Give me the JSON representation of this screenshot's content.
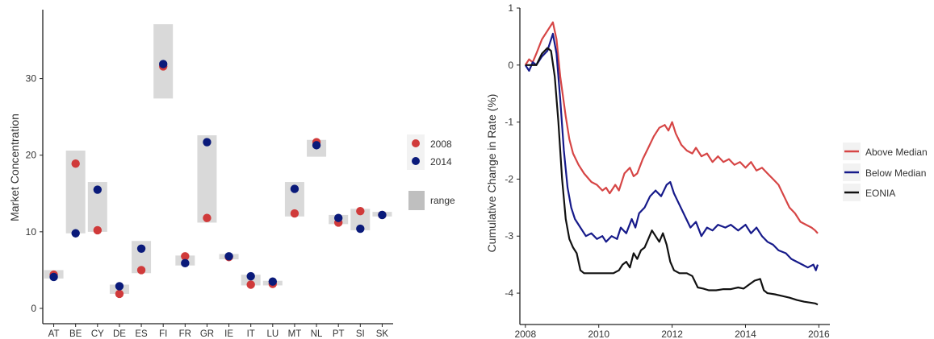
{
  "chart_data": [
    {
      "type": "scatter",
      "ylabel": "Market Concentration",
      "categories": [
        "AT",
        "BE",
        "CY",
        "DE",
        "ES",
        "FI",
        "FR",
        "GR",
        "IE",
        "IT",
        "LU",
        "MT",
        "NL",
        "PT",
        "SI",
        "SK"
      ],
      "ylim": [
        -2,
        39
      ],
      "yticks": [
        0,
        10,
        20,
        30
      ],
      "legend_position": "right",
      "series": [
        {
          "name": "2008",
          "color": "#d03a3a",
          "values": [
            4.4,
            18.9,
            10.2,
            1.9,
            5.0,
            31.6,
            6.8,
            11.8,
            6.7,
            3.1,
            3.2,
            12.4,
            21.7,
            11.2,
            12.7,
            12.2
          ]
        },
        {
          "name": "2014",
          "color": "#0a1a7a",
          "values": [
            4.1,
            9.8,
            15.5,
            2.9,
            7.8,
            31.9,
            5.9,
            21.7,
            6.8,
            4.2,
            3.5,
            15.6,
            21.3,
            11.8,
            10.4,
            12.2
          ]
        }
      ],
      "range": {
        "name": "range",
        "color": "#d9d9d9",
        "low": [
          3.9,
          9.8,
          10.0,
          1.9,
          4.6,
          27.4,
          5.6,
          11.2,
          6.4,
          3.0,
          3.0,
          12.0,
          19.8,
          11.0,
          10.2,
          12.0
        ],
        "high": [
          5.0,
          20.6,
          16.5,
          3.1,
          8.8,
          37.1,
          6.9,
          22.6,
          7.1,
          4.4,
          3.6,
          16.5,
          22.0,
          12.2,
          13.0,
          12.6
        ]
      }
    },
    {
      "type": "line",
      "ylabel": "Cumulative Change in Rate (%)",
      "xlim": [
        2007.85,
        2016.3
      ],
      "ylim": [
        -4.55,
        1.0
      ],
      "xticks": [
        2008,
        2010,
        2012,
        2014,
        2016
      ],
      "yticks": [
        1,
        0,
        -1,
        -2,
        -3,
        -4
      ],
      "legend_position": "right",
      "series": [
        {
          "name": "Above Median",
          "color": "#d64545",
          "points": [
            [
              2008.0,
              0.0
            ],
            [
              2008.1,
              0.1
            ],
            [
              2008.2,
              0.05
            ],
            [
              2008.3,
              0.2
            ],
            [
              2008.45,
              0.45
            ],
            [
              2008.6,
              0.6
            ],
            [
              2008.75,
              0.75
            ],
            [
              2008.85,
              0.45
            ],
            [
              2008.95,
              -0.2
            ],
            [
              2009.1,
              -0.9
            ],
            [
              2009.2,
              -1.3
            ],
            [
              2009.3,
              -1.55
            ],
            [
              2009.45,
              -1.75
            ],
            [
              2009.6,
              -1.9
            ],
            [
              2009.8,
              -2.05
            ],
            [
              2009.95,
              -2.1
            ],
            [
              2010.1,
              -2.2
            ],
            [
              2010.2,
              -2.15
            ],
            [
              2010.3,
              -2.25
            ],
            [
              2010.45,
              -2.1
            ],
            [
              2010.55,
              -2.2
            ],
            [
              2010.7,
              -1.9
            ],
            [
              2010.85,
              -1.8
            ],
            [
              2010.95,
              -1.95
            ],
            [
              2011.05,
              -1.9
            ],
            [
              2011.2,
              -1.65
            ],
            [
              2011.35,
              -1.45
            ],
            [
              2011.5,
              -1.25
            ],
            [
              2011.65,
              -1.1
            ],
            [
              2011.8,
              -1.05
            ],
            [
              2011.9,
              -1.15
            ],
            [
              2012.0,
              -1.0
            ],
            [
              2012.1,
              -1.2
            ],
            [
              2012.25,
              -1.4
            ],
            [
              2012.4,
              -1.5
            ],
            [
              2012.55,
              -1.55
            ],
            [
              2012.65,
              -1.45
            ],
            [
              2012.8,
              -1.6
            ],
            [
              2012.95,
              -1.55
            ],
            [
              2013.1,
              -1.7
            ],
            [
              2013.25,
              -1.6
            ],
            [
              2013.4,
              -1.7
            ],
            [
              2013.55,
              -1.65
            ],
            [
              2013.7,
              -1.75
            ],
            [
              2013.85,
              -1.7
            ],
            [
              2014.0,
              -1.8
            ],
            [
              2014.15,
              -1.7
            ],
            [
              2014.3,
              -1.85
            ],
            [
              2014.45,
              -1.8
            ],
            [
              2014.6,
              -1.9
            ],
            [
              2014.75,
              -2.0
            ],
            [
              2014.9,
              -2.1
            ],
            [
              2015.05,
              -2.3
            ],
            [
              2015.2,
              -2.5
            ],
            [
              2015.35,
              -2.6
            ],
            [
              2015.5,
              -2.75
            ],
            [
              2015.65,
              -2.8
            ],
            [
              2015.8,
              -2.85
            ],
            [
              2015.9,
              -2.9
            ],
            [
              2015.97,
              -2.95
            ]
          ]
        },
        {
          "name": "Below Median",
          "color": "#161a8a",
          "points": [
            [
              2008.0,
              0.0
            ],
            [
              2008.1,
              -0.1
            ],
            [
              2008.2,
              0.05
            ],
            [
              2008.3,
              0.0
            ],
            [
              2008.45,
              0.15
            ],
            [
              2008.6,
              0.25
            ],
            [
              2008.75,
              0.55
            ],
            [
              2008.85,
              0.2
            ],
            [
              2008.95,
              -0.6
            ],
            [
              2009.05,
              -1.5
            ],
            [
              2009.15,
              -2.15
            ],
            [
              2009.25,
              -2.5
            ],
            [
              2009.35,
              -2.7
            ],
            [
              2009.5,
              -2.85
            ],
            [
              2009.65,
              -3.0
            ],
            [
              2009.8,
              -2.95
            ],
            [
              2009.95,
              -3.05
            ],
            [
              2010.1,
              -3.0
            ],
            [
              2010.2,
              -3.1
            ],
            [
              2010.35,
              -3.0
            ],
            [
              2010.5,
              -3.05
            ],
            [
              2010.6,
              -2.85
            ],
            [
              2010.75,
              -2.95
            ],
            [
              2010.9,
              -2.7
            ],
            [
              2011.0,
              -2.85
            ],
            [
              2011.1,
              -2.6
            ],
            [
              2011.25,
              -2.5
            ],
            [
              2011.4,
              -2.3
            ],
            [
              2011.55,
              -2.2
            ],
            [
              2011.7,
              -2.3
            ],
            [
              2011.85,
              -2.1
            ],
            [
              2011.95,
              -2.05
            ],
            [
              2012.05,
              -2.25
            ],
            [
              2012.2,
              -2.45
            ],
            [
              2012.35,
              -2.65
            ],
            [
              2012.5,
              -2.85
            ],
            [
              2012.65,
              -2.75
            ],
            [
              2012.8,
              -3.0
            ],
            [
              2012.95,
              -2.85
            ],
            [
              2013.1,
              -2.9
            ],
            [
              2013.25,
              -2.8
            ],
            [
              2013.45,
              -2.85
            ],
            [
              2013.6,
              -2.8
            ],
            [
              2013.8,
              -2.9
            ],
            [
              2014.0,
              -2.8
            ],
            [
              2014.15,
              -2.95
            ],
            [
              2014.3,
              -2.85
            ],
            [
              2014.45,
              -3.0
            ],
            [
              2014.6,
              -3.1
            ],
            [
              2014.75,
              -3.15
            ],
            [
              2014.9,
              -3.25
            ],
            [
              2015.1,
              -3.3
            ],
            [
              2015.25,
              -3.4
            ],
            [
              2015.4,
              -3.45
            ],
            [
              2015.55,
              -3.5
            ],
            [
              2015.7,
              -3.55
            ],
            [
              2015.85,
              -3.5
            ],
            [
              2015.92,
              -3.6
            ],
            [
              2015.97,
              -3.5
            ]
          ]
        },
        {
          "name": "EONIA",
          "color": "#111111",
          "points": [
            [
              2008.0,
              0.0
            ],
            [
              2008.15,
              0.0
            ],
            [
              2008.3,
              0.0
            ],
            [
              2008.45,
              0.2
            ],
            [
              2008.6,
              0.3
            ],
            [
              2008.7,
              0.25
            ],
            [
              2008.8,
              -0.2
            ],
            [
              2008.9,
              -1.0
            ],
            [
              2009.0,
              -2.0
            ],
            [
              2009.1,
              -2.7
            ],
            [
              2009.2,
              -3.05
            ],
            [
              2009.3,
              -3.2
            ],
            [
              2009.4,
              -3.3
            ],
            [
              2009.5,
              -3.6
            ],
            [
              2009.6,
              -3.65
            ],
            [
              2009.8,
              -3.65
            ],
            [
              2010.0,
              -3.65
            ],
            [
              2010.2,
              -3.65
            ],
            [
              2010.4,
              -3.65
            ],
            [
              2010.55,
              -3.6
            ],
            [
              2010.65,
              -3.5
            ],
            [
              2010.75,
              -3.45
            ],
            [
              2010.85,
              -3.55
            ],
            [
              2010.95,
              -3.3
            ],
            [
              2011.05,
              -3.4
            ],
            [
              2011.15,
              -3.25
            ],
            [
              2011.25,
              -3.2
            ],
            [
              2011.35,
              -3.05
            ],
            [
              2011.45,
              -2.9
            ],
            [
              2011.55,
              -3.0
            ],
            [
              2011.65,
              -3.1
            ],
            [
              2011.75,
              -2.95
            ],
            [
              2011.85,
              -3.15
            ],
            [
              2011.95,
              -3.45
            ],
            [
              2012.05,
              -3.6
            ],
            [
              2012.2,
              -3.65
            ],
            [
              2012.4,
              -3.65
            ],
            [
              2012.55,
              -3.7
            ],
            [
              2012.7,
              -3.9
            ],
            [
              2012.85,
              -3.92
            ],
            [
              2013.0,
              -3.95
            ],
            [
              2013.2,
              -3.95
            ],
            [
              2013.4,
              -3.93
            ],
            [
              2013.6,
              -3.93
            ],
            [
              2013.8,
              -3.9
            ],
            [
              2013.95,
              -3.92
            ],
            [
              2014.1,
              -3.85
            ],
            [
              2014.25,
              -3.78
            ],
            [
              2014.4,
              -3.75
            ],
            [
              2014.5,
              -3.95
            ],
            [
              2014.6,
              -4.0
            ],
            [
              2014.8,
              -4.02
            ],
            [
              2015.0,
              -4.05
            ],
            [
              2015.2,
              -4.08
            ],
            [
              2015.4,
              -4.12
            ],
            [
              2015.6,
              -4.15
            ],
            [
              2015.8,
              -4.17
            ],
            [
              2015.9,
              -4.18
            ],
            [
              2015.97,
              -4.2
            ]
          ]
        }
      ]
    }
  ]
}
